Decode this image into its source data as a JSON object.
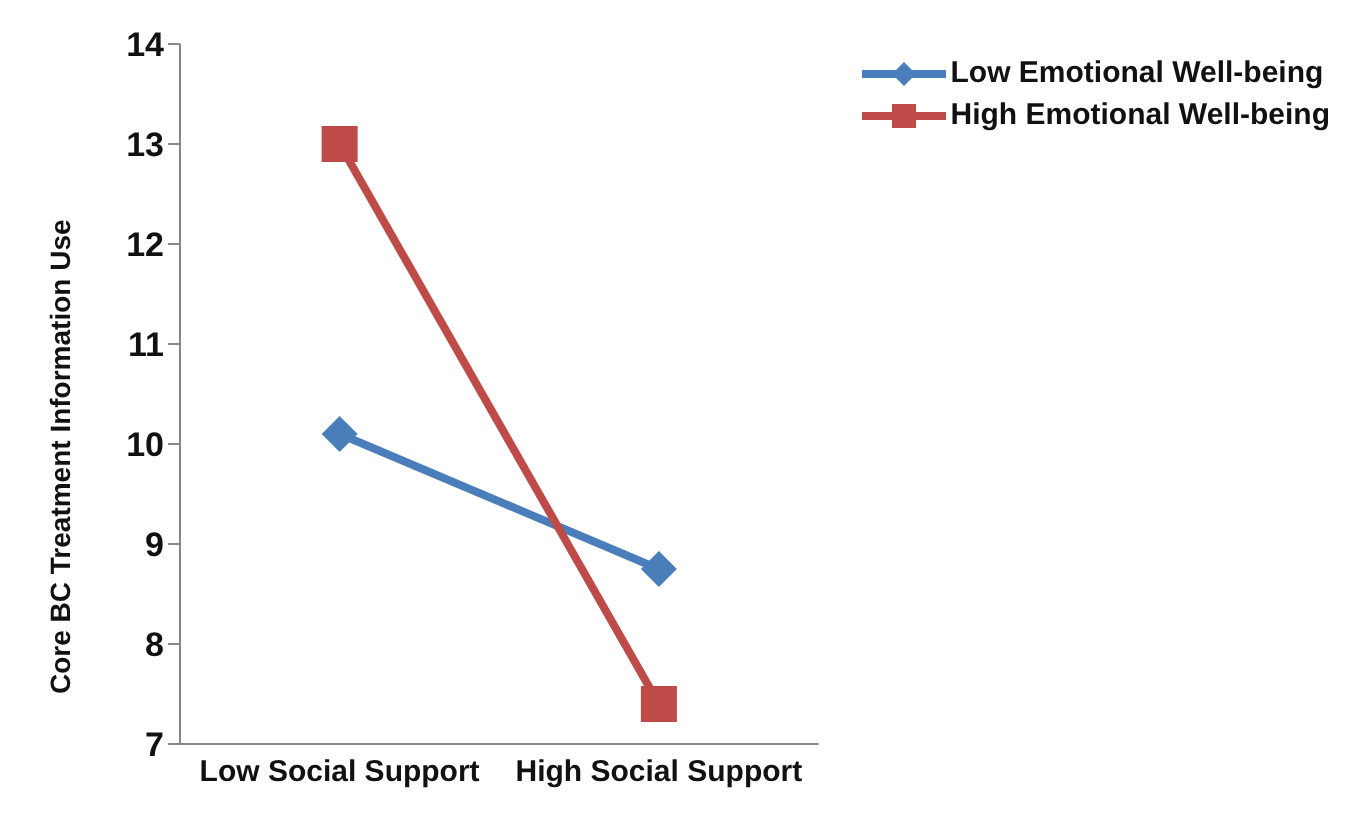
{
  "chart_data": {
    "type": "line",
    "ylabel": "Core BC Treatment Information Use",
    "categories": [
      "Low Social Support",
      "High Social Support"
    ],
    "series": [
      {
        "name": "Low Emotional Well-being",
        "color": "#4a7ebb",
        "values": [
          10.1,
          8.75
        ],
        "marker": "diamond"
      },
      {
        "name": "High Emotional Well-being",
        "color": "#be4b48",
        "values": [
          13,
          7.4
        ],
        "marker": "square"
      }
    ],
    "ylim": [
      7,
      14
    ],
    "yticks": [
      7,
      8,
      9,
      10,
      11,
      12,
      13,
      14
    ],
    "grid": false,
    "legend": "top right",
    "line_style": "solid"
  }
}
